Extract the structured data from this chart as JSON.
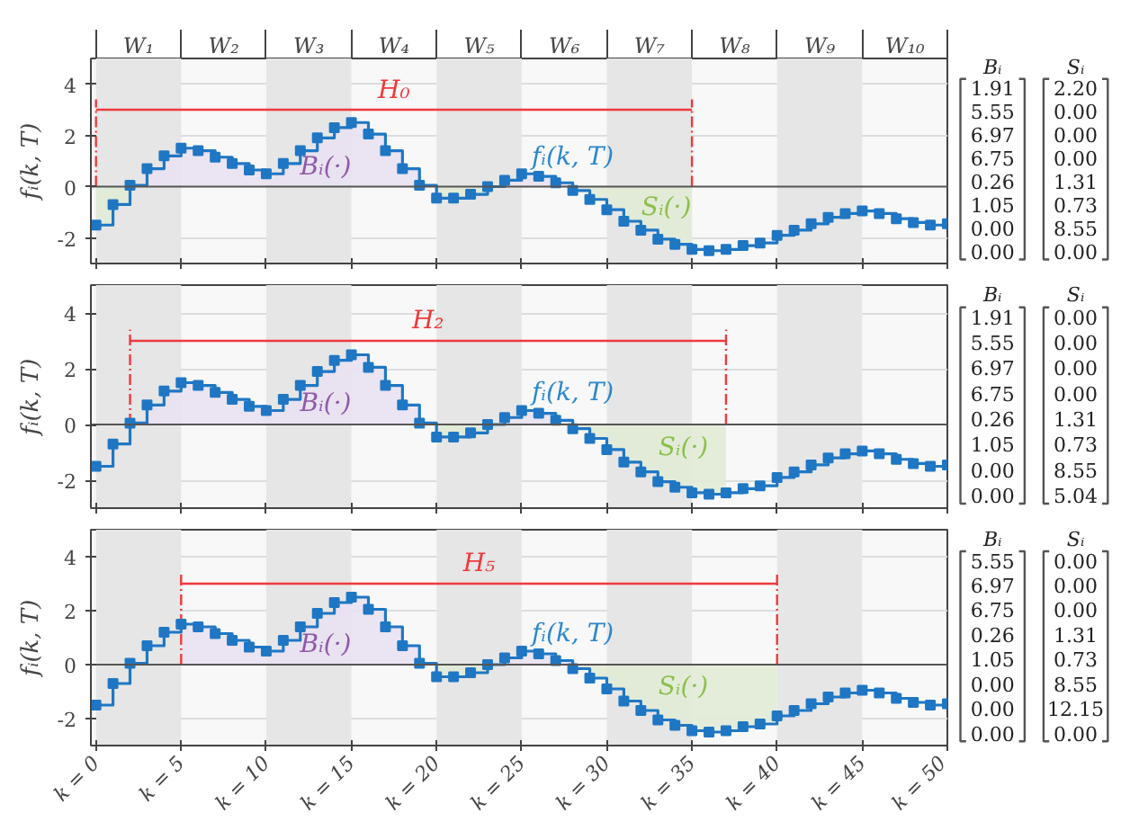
{
  "chart_data": [
    {
      "type": "step",
      "x": [
        0,
        1,
        2,
        3,
        4,
        5,
        6,
        7,
        8,
        9,
        10,
        11,
        12,
        13,
        14,
        15,
        16,
        17,
        18,
        19,
        20,
        21,
        22,
        23,
        24,
        25,
        26,
        27,
        28,
        29,
        30,
        31,
        32,
        33,
        34,
        35,
        36,
        37,
        38,
        39,
        40,
        41,
        42,
        43,
        44,
        45,
        46,
        47,
        48,
        49,
        50
      ],
      "ylabel": "fᵢ(k, T)",
      "xlim": [
        -0.3,
        50
      ],
      "ylim": [
        -3,
        5
      ],
      "yticks": [
        -2,
        0,
        2,
        4
      ],
      "grid": "y",
      "tick_labels": "y",
      "xticks": [
        0,
        5,
        10,
        15,
        20,
        25,
        30,
        35,
        40,
        45,
        50
      ],
      "bands": [
        {
          "axis": "x",
          "from": 0,
          "to": 5,
          "color": "#e6e6e6"
        },
        {
          "axis": "x",
          "from": 10,
          "to": 15,
          "color": "#e6e6e6"
        },
        {
          "axis": "x",
          "from": 20,
          "to": 25,
          "color": "#e6e6e6"
        },
        {
          "axis": "x",
          "from": 30,
          "to": 35,
          "color": "#e6e6e6"
        },
        {
          "axis": "x",
          "from": 40,
          "to": 45,
          "color": "#e6e6e6"
        }
      ],
      "ref_lines": [
        {
          "axis": "y",
          "value": 0,
          "color": "#555555"
        }
      ],
      "series": [
        {
          "type": "area",
          "name": "Bᵢ(·)",
          "color": "#e9e1f1",
          "x": [
            0,
            1,
            2,
            3,
            4,
            5,
            6,
            7,
            8,
            9,
            10,
            11,
            12,
            13,
            14,
            15,
            16,
            17,
            18,
            19,
            20,
            21,
            22,
            23,
            24,
            25,
            26,
            27,
            28,
            29,
            30,
            31,
            32,
            33,
            34,
            35
          ],
          "values": [
            0,
            0,
            0.05,
            0.7,
            1.2,
            1.5,
            1.4,
            1.15,
            0.9,
            0.65,
            0.5,
            0.9,
            1.4,
            1.9,
            2.3,
            2.5,
            2.05,
            1.4,
            0.7,
            0.05,
            0,
            0,
            0,
            0,
            0.25,
            0.5,
            0.4,
            0.15,
            0,
            0,
            0,
            0,
            0,
            0,
            0,
            0
          ]
        },
        {
          "type": "area",
          "name": "Sᵢ(·)",
          "color": "#e1ebd6",
          "x": [
            0,
            1,
            2,
            3,
            4,
            5,
            6,
            7,
            8,
            9,
            10,
            11,
            12,
            13,
            14,
            15,
            16,
            17,
            18,
            19,
            20,
            21,
            22,
            23,
            24,
            25,
            26,
            27,
            28,
            29,
            30,
            31,
            32,
            33,
            34,
            35
          ],
          "values": [
            -1.5,
            -0.7,
            0,
            0,
            0,
            0,
            0,
            0,
            0,
            0,
            0,
            0,
            0,
            0,
            0,
            0,
            0,
            0,
            0,
            0,
            -0.45,
            -0.45,
            -0.3,
            0,
            0,
            0,
            0,
            0,
            -0.15,
            -0.5,
            -0.9,
            -1.35,
            -1.7,
            -2.05,
            -2.25,
            -2.45
          ]
        },
        {
          "type": "line",
          "name": "H₀",
          "color": "#f0393c",
          "x": [
            0,
            35
          ],
          "values": [
            3,
            3
          ]
        },
        {
          "type": "line",
          "color": "#f0393c",
          "line_style": "dashed",
          "x": [
            0,
            0
          ],
          "values": [
            0,
            3.4
          ]
        },
        {
          "type": "line",
          "color": "#f0393c",
          "line_style": "dashed",
          "x": [
            35,
            35
          ],
          "values": [
            0,
            3.4
          ]
        },
        {
          "type": "step",
          "name": "fᵢ(k, T)",
          "color": "#1f77c4",
          "marker": "square",
          "values": [
            -1.5,
            -0.7,
            0.05,
            0.7,
            1.2,
            1.5,
            1.4,
            1.15,
            0.9,
            0.65,
            0.5,
            0.9,
            1.4,
            1.9,
            2.3,
            2.5,
            2.05,
            1.4,
            0.7,
            0.05,
            -0.45,
            -0.45,
            -0.3,
            0.0,
            0.25,
            0.5,
            0.4,
            0.15,
            -0.15,
            -0.5,
            -0.9,
            -1.35,
            -1.7,
            -2.05,
            -2.25,
            -2.45,
            -2.5,
            -2.45,
            -2.3,
            -2.2,
            -1.9,
            -1.7,
            -1.45,
            -1.2,
            -1.05,
            -0.95,
            -1.05,
            -1.25,
            -1.4,
            -1.5,
            -1.45
          ]
        }
      ],
      "annotations": [
        "W₁",
        "W₂",
        "W₃",
        "W₄",
        "W₅",
        "W₆",
        "W₇",
        "W₈",
        "W₉",
        "W₁₀"
      ]
    },
    {
      "type": "other",
      "annotations": [
        "Bᵢ",
        "Sᵢ",
        "1.91",
        "2.20",
        "5.55",
        "0.00",
        "6.97",
        "0.00",
        "6.75",
        "0.00",
        "0.26",
        "1.31",
        "1.05",
        "0.73",
        "0.00",
        "8.55",
        "0.00",
        "0.00"
      ]
    },
    {
      "type": "step",
      "x": [
        0,
        1,
        2,
        3,
        4,
        5,
        6,
        7,
        8,
        9,
        10,
        11,
        12,
        13,
        14,
        15,
        16,
        17,
        18,
        19,
        20,
        21,
        22,
        23,
        24,
        25,
        26,
        27,
        28,
        29,
        30,
        31,
        32,
        33,
        34,
        35,
        36,
        37,
        38,
        39,
        40,
        41,
        42,
        43,
        44,
        45,
        46,
        47,
        48,
        49,
        50
      ],
      "ylabel": "fᵢ(k, T)",
      "xlim": [
        -0.3,
        50
      ],
      "ylim": [
        -3,
        5
      ],
      "yticks": [
        -2,
        0,
        2,
        4
      ],
      "grid": "y",
      "tick_labels": "y",
      "xticks": [
        0,
        5,
        10,
        15,
        20,
        25,
        30,
        35,
        40,
        45,
        50
      ],
      "bands": [
        {
          "axis": "x",
          "from": 0,
          "to": 5,
          "color": "#e6e6e6"
        },
        {
          "axis": "x",
          "from": 10,
          "to": 15,
          "color": "#e6e6e6"
        },
        {
          "axis": "x",
          "from": 20,
          "to": 25,
          "color": "#e6e6e6"
        },
        {
          "axis": "x",
          "from": 30,
          "to": 35,
          "color": "#e6e6e6"
        },
        {
          "axis": "x",
          "from": 40,
          "to": 45,
          "color": "#e6e6e6"
        }
      ],
      "ref_lines": [
        {
          "axis": "y",
          "value": 0,
          "color": "#555555"
        }
      ],
      "series": [
        {
          "type": "area",
          "name": "Bᵢ(·)",
          "color": "#e9e1f1",
          "x": [
            2,
            3,
            4,
            5,
            6,
            7,
            8,
            9,
            10,
            11,
            12,
            13,
            14,
            15,
            16,
            17,
            18,
            19,
            20,
            21,
            22,
            23,
            24,
            25,
            26,
            27,
            28,
            29,
            30,
            31,
            32,
            33,
            34,
            35,
            36,
            37
          ],
          "values": [
            0.05,
            0.7,
            1.2,
            1.5,
            1.4,
            1.15,
            0.9,
            0.65,
            0.5,
            0.9,
            1.4,
            1.9,
            2.3,
            2.5,
            2.05,
            1.4,
            0.7,
            0.05,
            0,
            0,
            0,
            0,
            0.25,
            0.5,
            0.4,
            0.15,
            0,
            0,
            0,
            0,
            0,
            0,
            0,
            0,
            0,
            0
          ]
        },
        {
          "type": "area",
          "name": "Sᵢ(·)",
          "color": "#e1ebd6",
          "x": [
            2,
            3,
            4,
            5,
            6,
            7,
            8,
            9,
            10,
            11,
            12,
            13,
            14,
            15,
            16,
            17,
            18,
            19,
            20,
            21,
            22,
            23,
            24,
            25,
            26,
            27,
            28,
            29,
            30,
            31,
            32,
            33,
            34,
            35,
            36,
            37
          ],
          "values": [
            0,
            0,
            0,
            0,
            0,
            0,
            0,
            0,
            0,
            0,
            0,
            0,
            0,
            0,
            0,
            0,
            0,
            0,
            -0.45,
            -0.45,
            -0.3,
            0,
            0,
            0,
            0,
            0,
            -0.15,
            -0.5,
            -0.9,
            -1.35,
            -1.7,
            -2.05,
            -2.25,
            -2.45,
            -2.5,
            -2.45
          ]
        },
        {
          "type": "line",
          "name": "H₂",
          "color": "#f0393c",
          "x": [
            2,
            37
          ],
          "values": [
            3,
            3
          ]
        },
        {
          "type": "line",
          "color": "#f0393c",
          "line_style": "dashed",
          "x": [
            2,
            2
          ],
          "values": [
            0,
            3.4
          ]
        },
        {
          "type": "line",
          "color": "#f0393c",
          "line_style": "dashed",
          "x": [
            37,
            37
          ],
          "values": [
            0,
            3.4
          ]
        },
        {
          "type": "step",
          "name": "fᵢ(k, T)",
          "color": "#1f77c4",
          "marker": "square",
          "values": [
            -1.5,
            -0.7,
            0.05,
            0.7,
            1.2,
            1.5,
            1.4,
            1.15,
            0.9,
            0.65,
            0.5,
            0.9,
            1.4,
            1.9,
            2.3,
            2.5,
            2.05,
            1.4,
            0.7,
            0.05,
            -0.45,
            -0.45,
            -0.3,
            0.0,
            0.25,
            0.5,
            0.4,
            0.15,
            -0.15,
            -0.5,
            -0.9,
            -1.35,
            -1.7,
            -2.05,
            -2.25,
            -2.45,
            -2.5,
            -2.45,
            -2.3,
            -2.2,
            -1.9,
            -1.7,
            -1.45,
            -1.2,
            -1.05,
            -0.95,
            -1.05,
            -1.25,
            -1.4,
            -1.5,
            -1.45
          ]
        }
      ]
    },
    {
      "type": "other",
      "annotations": [
        "Bᵢ",
        "Sᵢ",
        "1.91",
        "0.00",
        "5.55",
        "0.00",
        "6.97",
        "0.00",
        "6.75",
        "0.00",
        "0.26",
        "1.31",
        "1.05",
        "0.73",
        "0.00",
        "8.55",
        "0.00",
        "5.04"
      ]
    },
    {
      "type": "step",
      "x": [
        0,
        1,
        2,
        3,
        4,
        5,
        6,
        7,
        8,
        9,
        10,
        11,
        12,
        13,
        14,
        15,
        16,
        17,
        18,
        19,
        20,
        21,
        22,
        23,
        24,
        25,
        26,
        27,
        28,
        29,
        30,
        31,
        32,
        33,
        34,
        35,
        36,
        37,
        38,
        39,
        40,
        41,
        42,
        43,
        44,
        45,
        46,
        47,
        48,
        49,
        50
      ],
      "ylabel": "fᵢ(k, T)",
      "xlim": [
        -0.3,
        50
      ],
      "ylim": [
        -3,
        5
      ],
      "yticks": [
        -2,
        0,
        2,
        4
      ],
      "grid": "y",
      "xticks": [
        {
          "value": 0,
          "label": "k = 0"
        },
        {
          "value": 5,
          "label": "k = 5"
        },
        {
          "value": 10,
          "label": "k = 10"
        },
        {
          "value": 15,
          "label": "k = 15"
        },
        {
          "value": 20,
          "label": "k = 20"
        },
        {
          "value": 25,
          "label": "k = 25"
        },
        {
          "value": 30,
          "label": "k = 30"
        },
        {
          "value": 35,
          "label": "k = 35"
        },
        {
          "value": 40,
          "label": "k = 40"
        },
        {
          "value": 45,
          "label": "k = 45"
        },
        {
          "value": 50,
          "label": "k = 50"
        }
      ],
      "bands": [
        {
          "axis": "x",
          "from": 0,
          "to": 5,
          "color": "#e6e6e6"
        },
        {
          "axis": "x",
          "from": 10,
          "to": 15,
          "color": "#e6e6e6"
        },
        {
          "axis": "x",
          "from": 20,
          "to": 25,
          "color": "#e6e6e6"
        },
        {
          "axis": "x",
          "from": 30,
          "to": 35,
          "color": "#e6e6e6"
        },
        {
          "axis": "x",
          "from": 40,
          "to": 45,
          "color": "#e6e6e6"
        }
      ],
      "ref_lines": [
        {
          "axis": "y",
          "value": 0,
          "color": "#555555"
        }
      ],
      "series": [
        {
          "type": "area",
          "name": "Bᵢ(·)",
          "color": "#e9e1f1",
          "x": [
            5,
            6,
            7,
            8,
            9,
            10,
            11,
            12,
            13,
            14,
            15,
            16,
            17,
            18,
            19,
            20,
            21,
            22,
            23,
            24,
            25,
            26,
            27,
            28,
            29,
            30,
            31,
            32,
            33,
            34,
            35,
            36,
            37,
            38,
            39,
            40
          ],
          "values": [
            1.5,
            1.4,
            1.15,
            0.9,
            0.65,
            0.5,
            0.9,
            1.4,
            1.9,
            2.3,
            2.5,
            2.05,
            1.4,
            0.7,
            0.05,
            0,
            0,
            0,
            0,
            0.25,
            0.5,
            0.4,
            0.15,
            0,
            0,
            0,
            0,
            0,
            0,
            0,
            0,
            0,
            0,
            0,
            0,
            0
          ]
        },
        {
          "type": "area",
          "name": "Sᵢ(·)",
          "color": "#e1ebd6",
          "x": [
            5,
            6,
            7,
            8,
            9,
            10,
            11,
            12,
            13,
            14,
            15,
            16,
            17,
            18,
            19,
            20,
            21,
            22,
            23,
            24,
            25,
            26,
            27,
            28,
            29,
            30,
            31,
            32,
            33,
            34,
            35,
            36,
            37,
            38,
            39,
            40
          ],
          "values": [
            0,
            0,
            0,
            0,
            0,
            0,
            0,
            0,
            0,
            0,
            0,
            0,
            0,
            0,
            0,
            -0.45,
            -0.45,
            -0.3,
            0,
            0,
            0,
            0,
            0,
            -0.15,
            -0.5,
            -0.9,
            -1.35,
            -1.7,
            -2.05,
            -2.25,
            -2.45,
            -2.5,
            -2.45,
            -2.3,
            -2.2,
            -1.9
          ]
        },
        {
          "type": "line",
          "name": "H₅",
          "color": "#f0393c",
          "x": [
            5,
            40
          ],
          "values": [
            3,
            3
          ]
        },
        {
          "type": "line",
          "color": "#f0393c",
          "line_style": "dashed",
          "x": [
            5,
            5
          ],
          "values": [
            0,
            3.4
          ]
        },
        {
          "type": "line",
          "color": "#f0393c",
          "line_style": "dashed",
          "x": [
            40,
            40
          ],
          "values": [
            0,
            3.4
          ]
        },
        {
          "type": "step",
          "name": "fᵢ(k, T)",
          "color": "#1f77c4",
          "marker": "square",
          "values": [
            -1.5,
            -0.7,
            0.05,
            0.7,
            1.2,
            1.5,
            1.4,
            1.15,
            0.9,
            0.65,
            0.5,
            0.9,
            1.4,
            1.9,
            2.3,
            2.5,
            2.05,
            1.4,
            0.7,
            0.05,
            -0.45,
            -0.45,
            -0.3,
            0.0,
            0.25,
            0.5,
            0.4,
            0.15,
            -0.15,
            -0.5,
            -0.9,
            -1.35,
            -1.7,
            -2.05,
            -2.25,
            -2.45,
            -2.5,
            -2.45,
            -2.3,
            -2.2,
            -1.9,
            -1.7,
            -1.45,
            -1.2,
            -1.05,
            -0.95,
            -1.05,
            -1.25,
            -1.4,
            -1.5,
            -1.45
          ]
        }
      ]
    },
    {
      "type": "other",
      "annotations": [
        "Bᵢ",
        "Sᵢ",
        "5.55",
        "0.00",
        "6.97",
        "0.00",
        "6.75",
        "0.00",
        "0.26",
        "1.31",
        "1.05",
        "0.73",
        "0.00",
        "8.55",
        "0.00",
        "12.15",
        "0.00",
        "0.00"
      ]
    }
  ]
}
